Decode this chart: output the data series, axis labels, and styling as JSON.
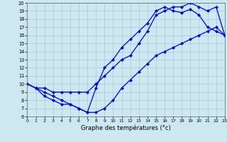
{
  "xlabel": "Graphe des températures (°c)",
  "bg_color": "#cde8f0",
  "line_color": "#0000cc",
  "grid_color": "#aac8d8",
  "xmin": 0,
  "xmax": 23,
  "ymin": 6,
  "ymax": 20,
  "xticks": [
    0,
    1,
    2,
    3,
    4,
    5,
    6,
    7,
    8,
    9,
    10,
    11,
    12,
    13,
    14,
    15,
    16,
    17,
    18,
    19,
    20,
    21,
    22,
    23
  ],
  "yticks": [
    6,
    7,
    8,
    9,
    10,
    11,
    12,
    13,
    14,
    15,
    16,
    17,
    18,
    19,
    20
  ],
  "series": [
    {
      "x": [
        0,
        1,
        2,
        3,
        4,
        5,
        6,
        7,
        8,
        9,
        10,
        11,
        12,
        13,
        14,
        15,
        16,
        17,
        18,
        19,
        20,
        21,
        22,
        23
      ],
      "y": [
        10,
        9.5,
        9,
        8.5,
        8,
        7.5,
        7,
        6.5,
        9.5,
        12,
        13,
        14.5,
        15.5,
        16.5,
        17.5,
        19.0,
        19.5,
        19.0,
        18.8,
        19.2,
        18.5,
        17.0,
        16.5,
        16.0
      ]
    },
    {
      "x": [
        0,
        1,
        2,
        3,
        4,
        5,
        6,
        7,
        8,
        9,
        10,
        11,
        12,
        13,
        14,
        15,
        16,
        17,
        18,
        19,
        20,
        21,
        22,
        23
      ],
      "y": [
        10,
        9.5,
        9.5,
        9.0,
        9.0,
        9.0,
        9.0,
        9.0,
        10.0,
        11.0,
        12.0,
        13.0,
        13.5,
        15.0,
        16.5,
        18.5,
        19.0,
        19.5,
        19.5,
        20.0,
        19.5,
        19.0,
        19.5,
        16.0
      ]
    },
    {
      "x": [
        0,
        1,
        2,
        3,
        4,
        5,
        6,
        7,
        8,
        9,
        10,
        11,
        12,
        13,
        14,
        15,
        16,
        17,
        18,
        19,
        20,
        21,
        22,
        23
      ],
      "y": [
        10,
        9.5,
        8.5,
        8.0,
        7.5,
        7.5,
        7.0,
        6.5,
        6.5,
        7.0,
        8.0,
        9.5,
        10.5,
        11.5,
        12.5,
        13.5,
        14.0,
        14.5,
        15.0,
        15.5,
        16.0,
        16.5,
        17.0,
        16.0
      ]
    }
  ]
}
